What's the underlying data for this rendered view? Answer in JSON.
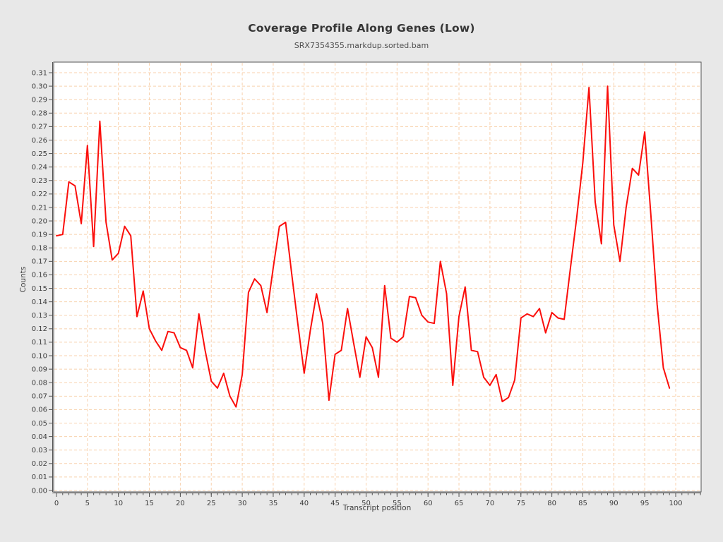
{
  "header": {
    "title": "Coverage Profile Along Genes (Low)",
    "subtitle": "SRX7354355.markdup.sorted.bam"
  },
  "chart_data": {
    "type": "line",
    "title": "Coverage Profile Along Genes (Low)",
    "subtitle": "SRX7354355.markdup.sorted.bam",
    "xlabel": "Transcript position",
    "ylabel": "Counts",
    "x_start": 0,
    "x_step": 1,
    "values": [
      0.189,
      0.19,
      0.229,
      0.226,
      0.198,
      0.256,
      0.181,
      0.274,
      0.199,
      0.171,
      0.176,
      0.196,
      0.189,
      0.129,
      0.148,
      0.12,
      0.111,
      0.104,
      0.118,
      0.117,
      0.106,
      0.104,
      0.091,
      0.131,
      0.104,
      0.081,
      0.076,
      0.087,
      0.07,
      0.062,
      0.086,
      0.147,
      0.157,
      0.152,
      0.132,
      0.165,
      0.196,
      0.199,
      0.16,
      0.123,
      0.087,
      0.119,
      0.146,
      0.124,
      0.067,
      0.101,
      0.104,
      0.135,
      0.109,
      0.084,
      0.114,
      0.106,
      0.084,
      0.152,
      0.113,
      0.11,
      0.114,
      0.144,
      0.143,
      0.13,
      0.125,
      0.124,
      0.17,
      0.146,
      0.078,
      0.129,
      0.151,
      0.104,
      0.103,
      0.084,
      0.078,
      0.086,
      0.066,
      0.069,
      0.082,
      0.128,
      0.131,
      0.129,
      0.135,
      0.117,
      0.132,
      0.128,
      0.127,
      0.165,
      0.202,
      0.243,
      0.299,
      0.214,
      0.183,
      0.3,
      0.197,
      0.17,
      0.21,
      0.239,
      0.234,
      0.266,
      0.204,
      0.138,
      0.091,
      0.076
    ],
    "x_ticks": [
      0,
      5,
      10,
      15,
      20,
      25,
      30,
      35,
      40,
      45,
      50,
      55,
      60,
      65,
      70,
      75,
      80,
      85,
      90,
      95,
      100
    ],
    "x_minor_tick_step": 1,
    "x_minor_tick_max": 104,
    "y_tick_min": 0.0,
    "y_tick_max": 0.31,
    "y_tick_step": 0.01,
    "xlim": [
      -0.5,
      104.1
    ],
    "ylim": [
      0,
      0.318
    ],
    "grid": "dashed",
    "legend_position": "none",
    "colors": {
      "line": "#fb0f0c",
      "grid": "#f8d2af",
      "axis": "#545454",
      "plot_bg": "#ffffff",
      "page_bg": "#e8e8e8",
      "tick_text": "#3d3d3d",
      "title_text": "#363636"
    }
  }
}
